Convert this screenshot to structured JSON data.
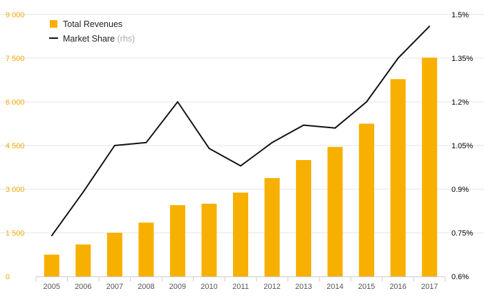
{
  "colors": {
    "bar": "#f7b000",
    "line": "#111111",
    "grid": "#e6e6e6",
    "left_axis_text": "#f2aa00"
  },
  "chart_data": {
    "type": "bar+line",
    "categories": [
      "2005",
      "2006",
      "2007",
      "2008",
      "2009",
      "2010",
      "2011",
      "2012",
      "2013",
      "2014",
      "2015",
      "2016",
      "2017"
    ],
    "series": [
      {
        "name": "Total Revenues",
        "type": "bar",
        "axis": "left",
        "values": [
          750,
          1100,
          1500,
          1850,
          2450,
          2500,
          2880,
          3380,
          4000,
          4450,
          5250,
          6780,
          7520
        ]
      },
      {
        "name": "Market Share",
        "legend_suffix": "(rhs)",
        "type": "line",
        "axis": "right",
        "values": [
          0.74,
          0.89,
          1.05,
          1.06,
          1.2,
          1.04,
          0.98,
          1.06,
          1.12,
          1.11,
          1.2,
          1.35,
          1.46
        ]
      }
    ],
    "left_axis": {
      "min": 0,
      "max": 9000,
      "ticks": [
        0,
        1500,
        3000,
        4500,
        6000,
        7500,
        9000
      ],
      "tick_labels": [
        "0",
        "1 500",
        "3 000",
        "4 500",
        "6 000",
        "7 500",
        "9 000"
      ]
    },
    "right_axis": {
      "min": 0.6,
      "max": 1.5,
      "ticks": [
        0.6,
        0.75,
        0.9,
        1.05,
        1.2,
        1.35,
        1.5
      ],
      "tick_labels": [
        "0.6%",
        "0.75%",
        "0.9%",
        "1.05%",
        "1.2%",
        "1.35%",
        "1.5%"
      ]
    },
    "grid": true,
    "legend_position": "top-left"
  }
}
